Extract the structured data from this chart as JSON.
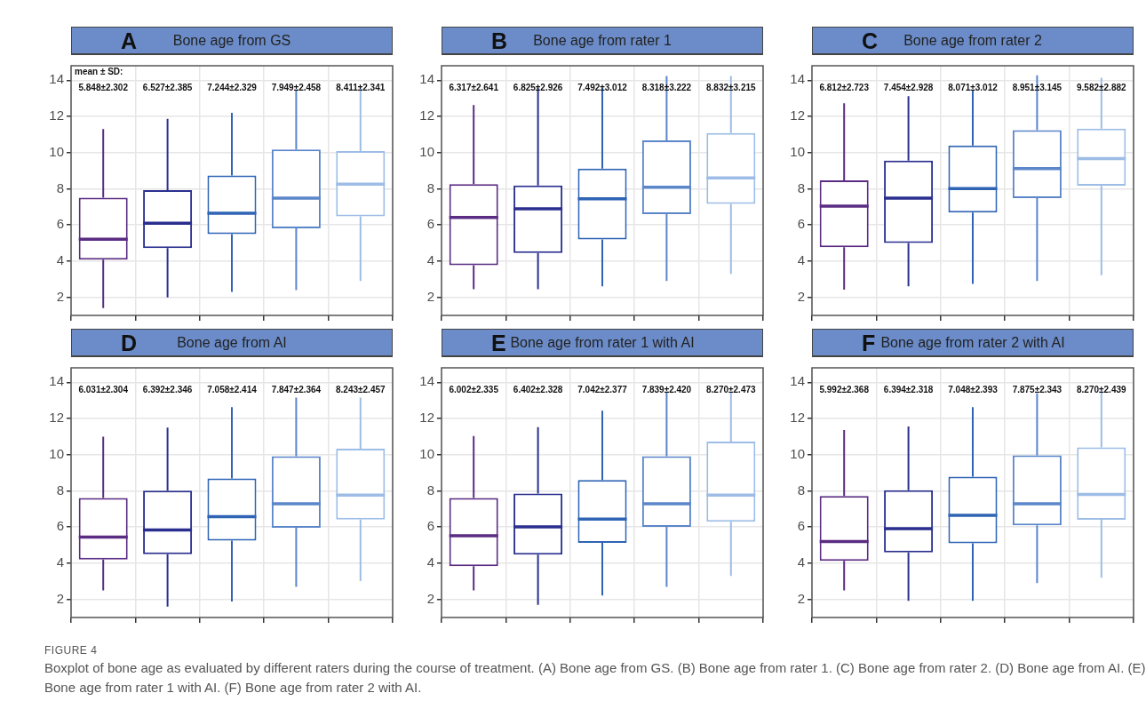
{
  "chart_data": [
    {
      "type": "box",
      "title": "A",
      "subtitle": "Bone age from GS",
      "categories": [
        null,
        null,
        null,
        null,
        null
      ],
      "colors": [
        "#5b2c83",
        "#2a2f8f",
        "#2f64b5",
        "#5b86c9",
        "#9dbde6"
      ],
      "ylim": [
        1,
        14.8
      ],
      "yticks": [
        2,
        4,
        6,
        8,
        10,
        12,
        14
      ],
      "grid": true,
      "tick_labels": "y",
      "annotations": [
        "mean ± SD:",
        "5.848±2.302",
        "6.527±2.385",
        "7.244±2.329",
        "7.949±2.458",
        "8.411±2.341"
      ],
      "boxes": [
        {
          "low": 1.4,
          "q1": 4.08,
          "median": 5.21,
          "q3": 7.51,
          "high": 11.3
        },
        {
          "low": 2.0,
          "q1": 4.72,
          "median": 6.09,
          "q3": 7.93,
          "high": 11.87
        },
        {
          "low": 2.3,
          "q1": 5.49,
          "median": 6.65,
          "q3": 8.73,
          "high": 12.2
        },
        {
          "low": 2.4,
          "q1": 5.81,
          "median": 7.48,
          "q3": 10.17,
          "high": 13.47
        },
        {
          "low": 2.9,
          "q1": 6.48,
          "median": 8.25,
          "q3": 10.09,
          "high": 13.63
        }
      ]
    },
    {
      "type": "box",
      "title": "B",
      "subtitle": "Bone age from rater 1",
      "categories": [
        null,
        null,
        null,
        null,
        null
      ],
      "colors": [
        "#5b2c83",
        "#2a2f8f",
        "#2f64b5",
        "#5b86c9",
        "#9dbde6"
      ],
      "ylim": [
        1,
        14.8
      ],
      "yticks": [
        2,
        4,
        6,
        8,
        10,
        12,
        14
      ],
      "grid": true,
      "tick_labels": "y",
      "annotations": [
        "6.317±2.641",
        "6.825±2.926",
        "7.492±3.012",
        "8.318±3.222",
        "8.832±3.215"
      ],
      "boxes": [
        {
          "low": 2.45,
          "q1": 3.78,
          "median": 6.41,
          "q3": 8.25,
          "high": 12.63
        },
        {
          "low": 2.45,
          "q1": 4.45,
          "median": 6.89,
          "q3": 8.18,
          "high": 13.58
        },
        {
          "low": 2.61,
          "q1": 5.2,
          "median": 7.45,
          "q3": 9.11,
          "high": 13.58
        },
        {
          "low": 2.9,
          "q1": 6.6,
          "median": 8.09,
          "q3": 10.68,
          "high": 14.24
        },
        {
          "low": 3.3,
          "q1": 7.16,
          "median": 8.6,
          "q3": 11.08,
          "high": 14.24
        }
      ]
    },
    {
      "type": "box",
      "title": "C",
      "subtitle": "Bone age from rater 2",
      "categories": [
        null,
        null,
        null,
        null,
        null
      ],
      "colors": [
        "#5b2c83",
        "#2a2f8f",
        "#2f64b5",
        "#5b86c9",
        "#9dbde6"
      ],
      "ylim": [
        1,
        14.8
      ],
      "yticks": [
        2,
        4,
        6,
        8,
        10,
        12,
        14
      ],
      "grid": true,
      "tick_labels": "y",
      "annotations": [
        "6.812±2.723",
        "7.454±2.928",
        "8.071±3.012",
        "8.951±3.145",
        "9.582±2.882"
      ],
      "boxes": [
        {
          "low": 2.42,
          "q1": 4.77,
          "median": 7.04,
          "q3": 8.47,
          "high": 12.72
        },
        {
          "low": 2.61,
          "q1": 5.0,
          "median": 7.48,
          "q3": 9.56,
          "high": 13.12
        },
        {
          "low": 2.74,
          "q1": 6.68,
          "median": 8.01,
          "q3": 10.39,
          "high": 13.47
        },
        {
          "low": 2.9,
          "q1": 7.48,
          "median": 9.11,
          "q3": 11.24,
          "high": 14.27
        },
        {
          "low": 3.22,
          "q1": 8.17,
          "median": 9.67,
          "q3": 11.32,
          "high": 14.14
        }
      ]
    },
    {
      "type": "box",
      "title": "D",
      "subtitle": "Bone age from AI",
      "categories": [
        null,
        null,
        null,
        null,
        null
      ],
      "colors": [
        "#5b2c83",
        "#2a2f8f",
        "#2f64b5",
        "#5b86c9",
        "#9dbde6"
      ],
      "ylim": [
        1,
        14.8
      ],
      "yticks": [
        2,
        4,
        6,
        8,
        10,
        12,
        14
      ],
      "grid": true,
      "tick_labels": "y",
      "annotations": [
        "6.031±2.304",
        "6.392±2.346",
        "7.058±2.414",
        "7.847±2.364",
        "8.243±2.457"
      ],
      "boxes": [
        {
          "low": 2.5,
          "q1": 4.21,
          "median": 5.44,
          "q3": 7.61,
          "high": 11.0
        },
        {
          "low": 1.6,
          "q1": 4.5,
          "median": 5.84,
          "q3": 8.01,
          "high": 11.5
        },
        {
          "low": 1.89,
          "q1": 5.25,
          "median": 6.57,
          "q3": 8.68,
          "high": 12.63
        },
        {
          "low": 2.69,
          "q1": 5.96,
          "median": 7.29,
          "q3": 9.91,
          "high": 13.16
        },
        {
          "low": 3.01,
          "q1": 6.41,
          "median": 7.77,
          "q3": 10.33,
          "high": 13.16
        }
      ]
    },
    {
      "type": "box",
      "title": "E",
      "subtitle": "Bone age from rater 1 with AI",
      "categories": [
        null,
        null,
        null,
        null,
        null
      ],
      "colors": [
        "#5b2c83",
        "#2a2f8f",
        "#2f64b5",
        "#5b86c9",
        "#9dbde6"
      ],
      "ylim": [
        1,
        14.8
      ],
      "yticks": [
        2,
        4,
        6,
        8,
        10,
        12,
        14
      ],
      "grid": true,
      "tick_labels": "y",
      "annotations": [
        "6.002±2.335",
        "6.402±2.328",
        "7.042±2.377",
        "7.839±2.420",
        "8.270±2.473"
      ],
      "boxes": [
        {
          "low": 2.5,
          "q1": 3.84,
          "median": 5.52,
          "q3": 7.61,
          "high": 11.03
        },
        {
          "low": 1.7,
          "q1": 4.48,
          "median": 6.01,
          "q3": 7.85,
          "high": 11.52
        },
        {
          "low": 2.21,
          "q1": 5.13,
          "median": 6.44,
          "q3": 8.6,
          "high": 12.43
        },
        {
          "low": 2.69,
          "q1": 6.01,
          "median": 7.29,
          "q3": 9.91,
          "high": 13.47
        },
        {
          "low": 3.3,
          "q1": 6.29,
          "median": 7.77,
          "q3": 10.72,
          "high": 13.47
        }
      ]
    },
    {
      "type": "box",
      "title": "F",
      "subtitle": "Bone age from rater 2 with AI",
      "categories": [
        null,
        null,
        null,
        null,
        null
      ],
      "colors": [
        "#5b2c83",
        "#2a2f8f",
        "#2f64b5",
        "#5b86c9",
        "#9dbde6"
      ],
      "ylim": [
        1,
        14.8
      ],
      "yticks": [
        2,
        4,
        6,
        8,
        10,
        12,
        14
      ],
      "grid": true,
      "tick_labels": "y",
      "annotations": [
        "5.992±2.368",
        "6.394±2.318",
        "7.048±2.393",
        "7.875±2.343",
        "8.270±2.439"
      ],
      "boxes": [
        {
          "low": 2.5,
          "q1": 4.13,
          "median": 5.2,
          "q3": 7.72,
          "high": 11.36
        },
        {
          "low": 1.92,
          "q1": 4.6,
          "median": 5.91,
          "q3": 8.04,
          "high": 11.56
        },
        {
          "low": 1.92,
          "q1": 5.1,
          "median": 6.65,
          "q3": 8.79,
          "high": 12.63
        },
        {
          "low": 2.9,
          "q1": 6.09,
          "median": 7.29,
          "q3": 9.96,
          "high": 13.39
        },
        {
          "low": 3.2,
          "q1": 6.4,
          "median": 7.8,
          "q3": 10.41,
          "high": 13.55
        }
      ]
    },
    {
      "type": "other",
      "title": "FIGURE 4",
      "annotations": [
        "Boxplot of bone age as evaluated by different raters during the course of treatment. (A) Bone age from GS. (B) Bone age from rater 1. (C) Bone age from rater 2. (D) Bone age from AI. (E) Bone age from rater 1 with AI. (F) Bone age from rater 2 with AI."
      ]
    }
  ]
}
